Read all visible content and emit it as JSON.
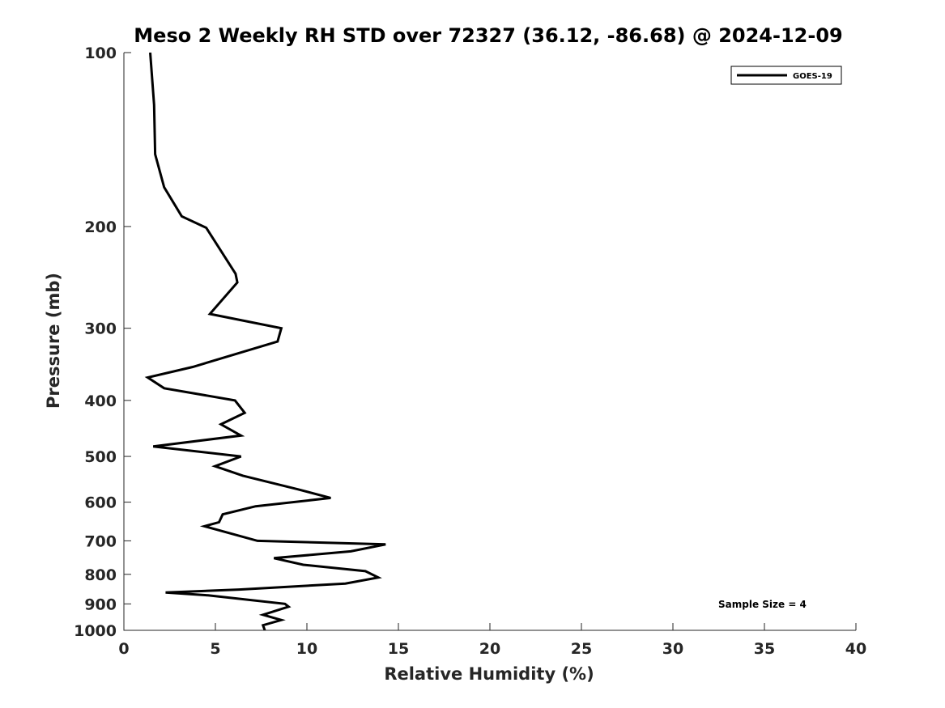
{
  "chart_data": {
    "type": "line",
    "title": "Meso 2 Weekly RH STD over 72327 (36.12, -86.68) @ 2024-12-09",
    "xlabel": "Relative Humidity (%)",
    "ylabel": "Pressure (mb)",
    "xlim": [
      0,
      40
    ],
    "ylim": [
      100,
      1000
    ],
    "yscale": "log",
    "xticks": [
      0,
      5,
      10,
      15,
      20,
      25,
      30,
      35,
      40
    ],
    "yticks": [
      100,
      200,
      300,
      400,
      500,
      600,
      700,
      800,
      900,
      1000
    ],
    "grid": false,
    "legend_position": "top-right",
    "annotation": "Sample Size = 4",
    "series": [
      {
        "name": "GOES-19",
        "color": "#000000",
        "points": [
          [
            1.44,
            100
          ],
          [
            1.65,
            123.2
          ],
          [
            1.71,
            150
          ],
          [
            2.2,
            171
          ],
          [
            3.16,
            192
          ],
          [
            4.5,
            201
          ],
          [
            6.1,
            241.4
          ],
          [
            6.2,
            250
          ],
          [
            4.7,
            283.4
          ],
          [
            8.6,
            300
          ],
          [
            8.4,
            316.2
          ],
          [
            3.76,
            350
          ],
          [
            1.3,
            365
          ],
          [
            2.2,
            381
          ],
          [
            6.07,
            400
          ],
          [
            6.6,
            420.3
          ],
          [
            5.3,
            440
          ],
          [
            6.4,
            460.1
          ],
          [
            1.6,
            480.4
          ],
          [
            6.4,
            500
          ],
          [
            4.98,
            520
          ],
          [
            6.5,
            540
          ],
          [
            9.5,
            570
          ],
          [
            11.3,
            590
          ],
          [
            7.2,
            610
          ],
          [
            5.4,
            630
          ],
          [
            5.2,
            650
          ],
          [
            4.4,
            660.6
          ],
          [
            7.3,
            700
          ],
          [
            14.3,
            710
          ],
          [
            12.4,
            730
          ],
          [
            8.2,
            750
          ],
          [
            9.8,
            770
          ],
          [
            13.2,
            790
          ],
          [
            13.9,
            810
          ],
          [
            12.1,
            830
          ],
          [
            6.3,
            850
          ],
          [
            2.28,
            860
          ],
          [
            4.6,
            870
          ],
          [
            8.8,
            900
          ],
          [
            9.0,
            910
          ],
          [
            7.6,
            940
          ],
          [
            8.6,
            960
          ],
          [
            7.6,
            980
          ],
          [
            7.7,
            1000
          ]
        ]
      }
    ]
  }
}
